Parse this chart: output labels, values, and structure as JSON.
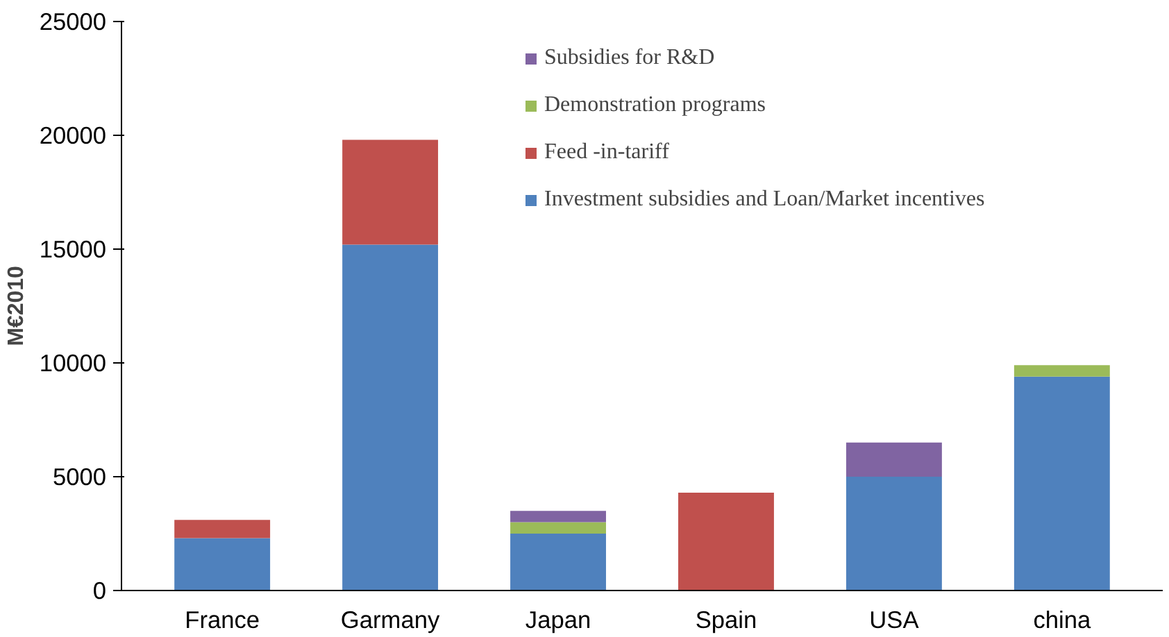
{
  "chart_data": {
    "type": "bar",
    "stacked": true,
    "ylabel": "M€2010",
    "categories": [
      "France",
      "Garmany",
      "Japan",
      "Spain",
      "USA",
      "china"
    ],
    "series": [
      {
        "name": "Investment subsidies and Loan/Market incentives",
        "color": "#4f81bd",
        "values": [
          2300,
          15200,
          2500,
          0,
          5000,
          9400
        ]
      },
      {
        "name": "Feed -in-tariff",
        "color": "#c0504d",
        "values": [
          800,
          4600,
          0,
          4300,
          0,
          0
        ]
      },
      {
        "name": "Demonstration programs",
        "color": "#9bbb59",
        "values": [
          0,
          0,
          500,
          0,
          0,
          500
        ]
      },
      {
        "name": "Subsidies for R&D",
        "color": "#8064a2",
        "values": [
          0,
          0,
          500,
          0,
          1500,
          0
        ]
      }
    ],
    "ylim": [
      0,
      25000
    ],
    "yticks": [
      0,
      5000,
      10000,
      15000,
      20000,
      25000
    ],
    "grid": false,
    "legend": "top"
  }
}
